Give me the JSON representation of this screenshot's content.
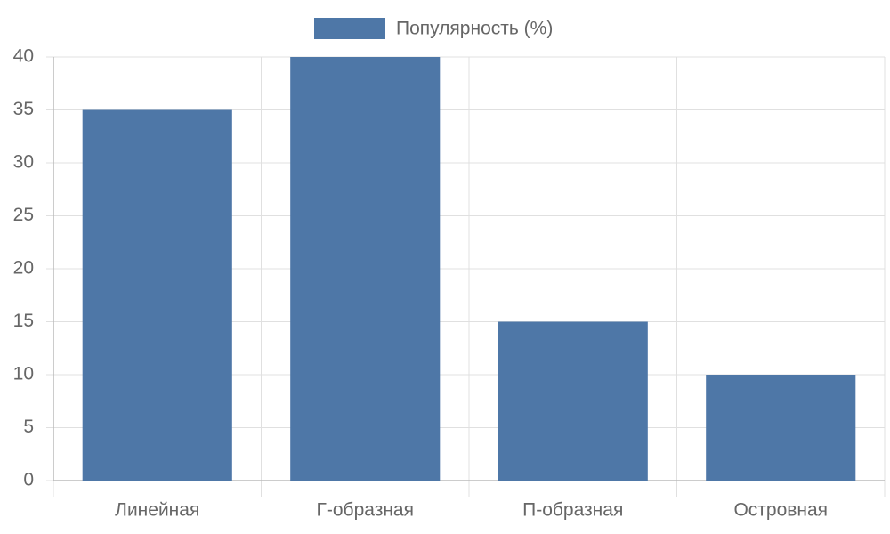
{
  "chart_data": {
    "type": "bar",
    "categories": [
      "Линейная",
      "Г-образная",
      "П-образная",
      "Островная"
    ],
    "series": [
      {
        "name": "Популярность (%)",
        "color": "#4e77a7",
        "values": [
          35,
          40,
          15,
          10
        ]
      }
    ],
    "ylim": [
      0,
      40
    ],
    "yticks": [
      0,
      5,
      10,
      15,
      20,
      25,
      30,
      35,
      40
    ],
    "grid": true,
    "legend": "top"
  }
}
